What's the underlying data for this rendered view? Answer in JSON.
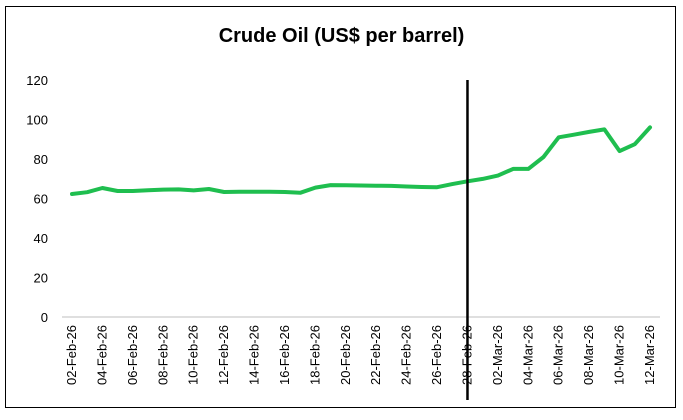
{
  "chart_data": {
    "type": "line",
    "title": "Crude Oil (US$ per barrel)",
    "xlabel": "",
    "ylabel": "",
    "ylim": [
      0,
      120
    ],
    "yticks": [
      "0",
      "20",
      "40",
      "60",
      "80",
      "100",
      "120"
    ],
    "x": [
      "02-Feb-26",
      "03-Feb-26",
      "04-Feb-26",
      "05-Feb-26",
      "06-Feb-26",
      "07-Feb-26",
      "08-Feb-26",
      "09-Feb-26",
      "10-Feb-26",
      "11-Feb-26",
      "12-Feb-26",
      "13-Feb-26",
      "14-Feb-26",
      "15-Feb-26",
      "16-Feb-26",
      "17-Feb-26",
      "18-Feb-26",
      "19-Feb-26",
      "20-Feb-26",
      "21-Feb-26",
      "22-Feb-26",
      "23-Feb-26",
      "24-Feb-26",
      "25-Feb-26",
      "26-Feb-26",
      "27-Feb-26",
      "28-Feb-26",
      "01-Mar-26",
      "02-Mar-26",
      "03-Mar-26",
      "04-Mar-26",
      "05-Mar-26",
      "06-Mar-26",
      "07-Mar-26",
      "08-Mar-26",
      "09-Mar-26",
      "10-Mar-26",
      "11-Mar-26",
      "12-Mar-26"
    ],
    "xtick_labels": [
      "02-Feb-26",
      "04-Feb-26",
      "06-Feb-26",
      "08-Feb-26",
      "10-Feb-26",
      "12-Feb-26",
      "14-Feb-26",
      "16-Feb-26",
      "18-Feb-26",
      "20-Feb-26",
      "22-Feb-26",
      "24-Feb-26",
      "26-Feb-26",
      "28-Feb-26",
      "02-Mar-26",
      "04-Mar-26",
      "06-Mar-26",
      "08-Mar-26",
      "10-Mar-26",
      "12-Mar-26"
    ],
    "series": [
      {
        "values": [
          62.3,
          63.2,
          65.3,
          63.8,
          63.8,
          64.2,
          64.5,
          64.6,
          64.1,
          64.8,
          63.3,
          63.4,
          63.4,
          63.4,
          63.3,
          62.9,
          65.5,
          66.8,
          66.7,
          66.6,
          66.5,
          66.4,
          66.1,
          65.8,
          65.7,
          67.3,
          68.7,
          69.9,
          71.6,
          75.0,
          75.0,
          81.0,
          91.0,
          92.3,
          93.7,
          95.0,
          84.0,
          87.5,
          96.0
        ],
        "color": "#1fbe4f"
      }
    ],
    "vertical_marker": {
      "x": "28-Feb-26",
      "color": "#000000"
    },
    "grid": false,
    "legend": "none"
  }
}
